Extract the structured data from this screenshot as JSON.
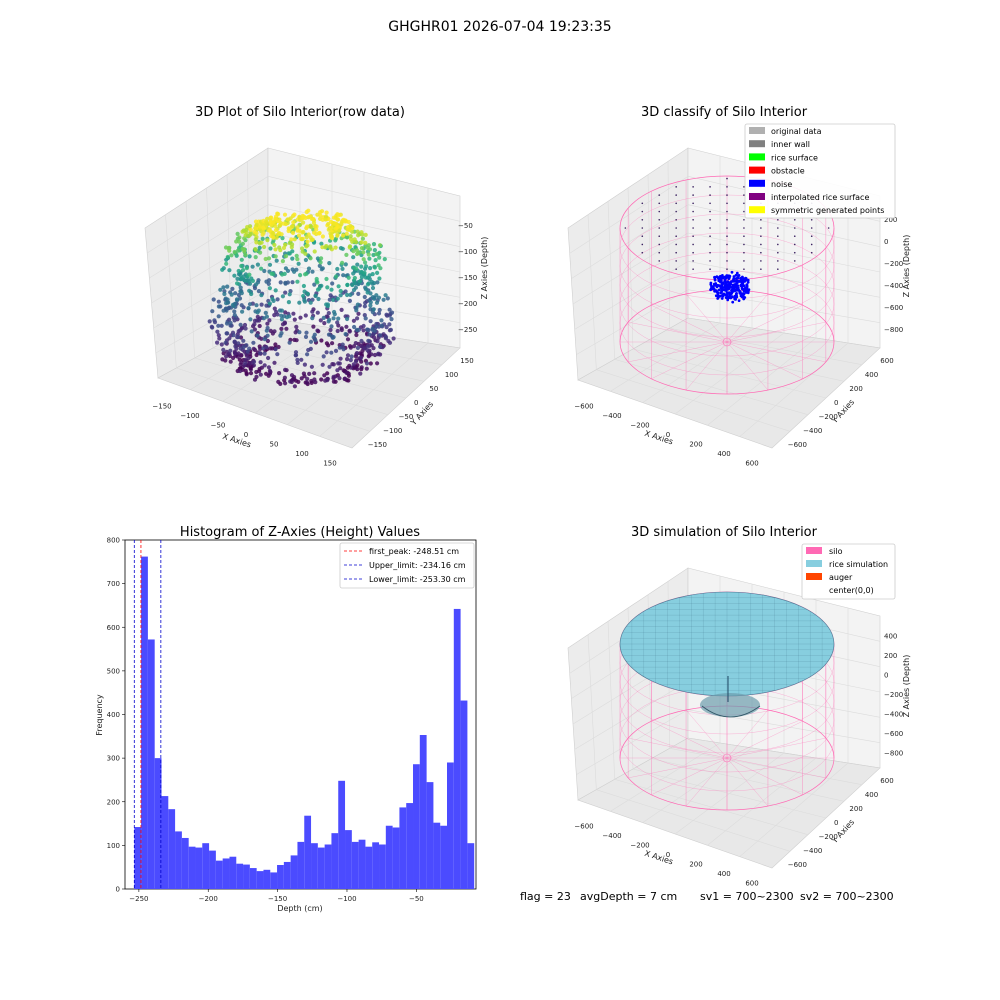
{
  "suptitle": "GHGHR01 2026-07-04 19:23:35",
  "status": {
    "flag": "flag = 23",
    "avg": "avgDepth = 7 cm",
    "sv1": "sv1 = 700~2300",
    "sv2": "sv2 = 700~2300"
  },
  "colors": {
    "hist_bar": "#4b4bff",
    "peak_line": "#ff0000",
    "limit_line": "#0000cc",
    "silo": "#ff69b4",
    "rice_simulation": "#87cedf",
    "auger": "#ff4500",
    "noise": "#0000ff"
  },
  "chart_data": [
    {
      "type": "scatter",
      "subtype": "3d",
      "title": "3D Plot of Silo Interior(row data)",
      "xlabel": "X Axies",
      "ylabel": "Y Axies",
      "zlabel": "Z Axies (Depth)",
      "x_ticks": [
        "−150",
        "−100",
        "−50",
        "0",
        "50",
        "100",
        "150"
      ],
      "y_ticks": [
        "−150",
        "−100",
        "−50",
        "0",
        "50",
        "100",
        "150"
      ],
      "z_ticks": [
        "−250",
        "−200",
        "−150",
        "−100",
        "−50"
      ],
      "xlim": [
        -150,
        150
      ],
      "ylim": [
        -150,
        150
      ],
      "zlim": [
        -270,
        -30
      ],
      "colormap": "viridis"
    },
    {
      "type": "scatter",
      "subtype": "3d",
      "title": "3D classify of Silo Interior",
      "xlabel": "X Axies",
      "ylabel": "Y Axies",
      "zlabel": "Z Axies (Depth)",
      "x_ticks": [
        "−600",
        "−400",
        "−200",
        "0",
        "200",
        "400",
        "600"
      ],
      "y_ticks": [
        "−600",
        "−400",
        "−200",
        "0",
        "200",
        "400",
        "600"
      ],
      "z_ticks": [
        "−800",
        "−600",
        "−400",
        "−200",
        "0",
        "200"
      ],
      "legend_position": "top-right",
      "legend": [
        {
          "label": "original data",
          "color": "#b0b0b0"
        },
        {
          "label": "inner wall",
          "color": "#808080"
        },
        {
          "label": "rice surface",
          "color": "#00ff00"
        },
        {
          "label": "obstacle",
          "color": "#ff0000"
        },
        {
          "label": "noise",
          "color": "#0000ff"
        },
        {
          "label": "interpolated rice surface",
          "color": "#800080"
        },
        {
          "label": "symmetric generated points",
          "color": "#ffff00"
        }
      ]
    },
    {
      "type": "bar",
      "subtype": "histogram",
      "title": "Histogram of Z-Axies (Height) Values",
      "xlabel": "Depth (cm)",
      "ylabel": "Frequency",
      "xlim": [
        -260,
        -7
      ],
      "ylim": [
        0,
        800
      ],
      "x_ticks": [
        "−250",
        "−200",
        "−150",
        "−100",
        "−50"
      ],
      "x_tick_values": [
        -250,
        -200,
        -150,
        -100,
        -50
      ],
      "y_ticks": [
        0,
        100,
        200,
        300,
        400,
        500,
        600,
        700,
        800
      ],
      "bin_start": -253.3,
      "bin_width": 4.9,
      "values": [
        142,
        762,
        572,
        300,
        213,
        183,
        132,
        117,
        97,
        95,
        105,
        88,
        65,
        70,
        74,
        58,
        56,
        48,
        41,
        44,
        38,
        55,
        62,
        77,
        108,
        168,
        105,
        95,
        102,
        128,
        248,
        135,
        108,
        113,
        97,
        107,
        102,
        145,
        141,
        187,
        197,
        286,
        353,
        245,
        152,
        145,
        290,
        642,
        432,
        105
      ],
      "vlines": [
        {
          "label": "first_peak: -248.51 cm",
          "value": -248.51,
          "color": "#ff0000"
        },
        {
          "label": "Upper_limit: -234.16 cm",
          "value": -234.16,
          "color": "#0000cc"
        },
        {
          "label": "Lower_limit: -253.30 cm",
          "value": -253.3,
          "color": "#0000cc"
        }
      ],
      "legend_position": "top-right"
    },
    {
      "type": "area",
      "subtype": "3d-surface",
      "title": "3D simulation of Silo Interior",
      "xlabel": "X Axies",
      "ylabel": "Y Axies",
      "zlabel": "Z Axies (Depth)",
      "x_ticks": [
        "−600",
        "−400",
        "−200",
        "0",
        "200",
        "400",
        "600"
      ],
      "y_ticks": [
        "−600",
        "−400",
        "−200",
        "0",
        "200",
        "400",
        "600"
      ],
      "z_ticks": [
        "−800",
        "−600",
        "−400",
        "−200",
        "0",
        "200",
        "400"
      ],
      "legend_position": "top-right",
      "legend": [
        {
          "label": "silo",
          "color": "#ff69b4"
        },
        {
          "label": "rice simulation",
          "color": "#87cedf"
        },
        {
          "label": "auger",
          "color": "#ff4500"
        },
        {
          "label": "center(0,0)",
          "color": "#ffffff"
        }
      ]
    }
  ]
}
